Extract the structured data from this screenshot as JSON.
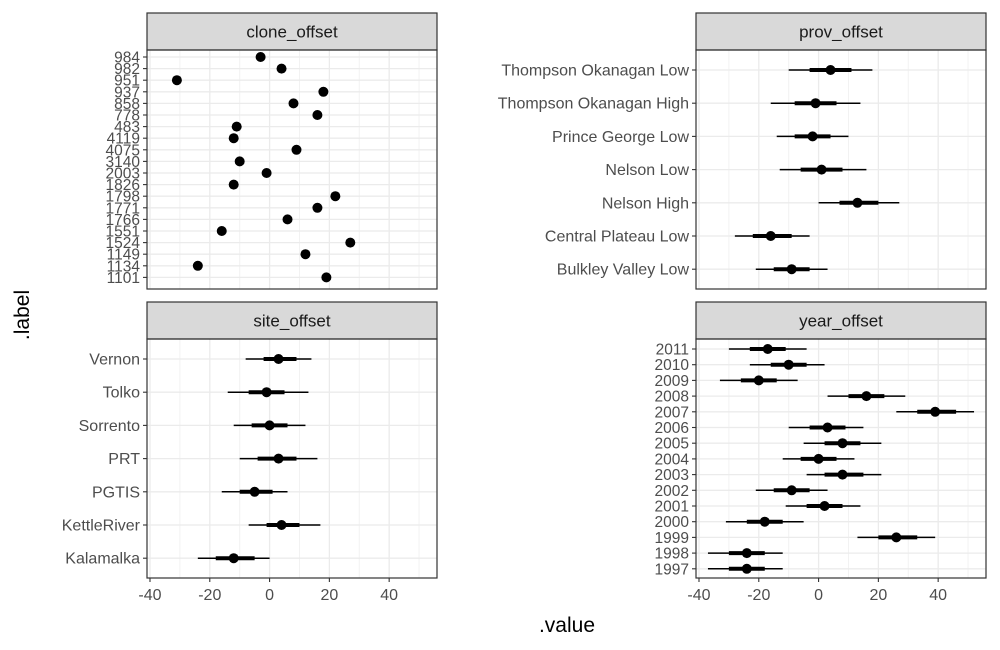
{
  "chart_data": {
    "type": "scatter",
    "xlabel": ".value",
    "ylabel": ".label",
    "x_ticks": [
      -40,
      -20,
      0,
      20,
      40
    ],
    "xlim": [
      -41,
      56
    ],
    "grid": true,
    "panels": [
      {
        "name": "clone_offset",
        "labels": [
          "984",
          "982",
          "951",
          "937",
          "858",
          "778",
          "483",
          "4119",
          "4075",
          "3140",
          "2003",
          "1826",
          "1798",
          "1771",
          "1766",
          "1551",
          "1524",
          "1149",
          "1134",
          "1101"
        ],
        "points": [
          {
            "label": "984",
            "value": -3
          },
          {
            "label": "982",
            "value": 4
          },
          {
            "label": "951",
            "value": -31
          },
          {
            "label": "937",
            "value": 18
          },
          {
            "label": "858",
            "value": 8
          },
          {
            "label": "778",
            "value": 16
          },
          {
            "label": "483",
            "value": -11
          },
          {
            "label": "4119",
            "value": -12
          },
          {
            "label": "4075",
            "value": 9
          },
          {
            "label": "3140",
            "value": -10
          },
          {
            "label": "2003",
            "value": -1
          },
          {
            "label": "1826",
            "value": -12
          },
          {
            "label": "1798",
            "value": 22
          },
          {
            "label": "1771",
            "value": 16
          },
          {
            "label": "1766",
            "value": 6
          },
          {
            "label": "1551",
            "value": -16
          },
          {
            "label": "1524",
            "value": 27
          },
          {
            "label": "1149",
            "value": 12
          },
          {
            "label": "1134",
            "value": -24
          },
          {
            "label": "1101",
            "value": 19
          }
        ]
      },
      {
        "name": "prov_offset",
        "labels": [
          "Thompson Okanagan Low",
          "Thompson Okanagan High",
          "Prince George Low",
          "Nelson Low",
          "Nelson High",
          "Central Plateau Low",
          "Bulkley Valley Low"
        ],
        "points": [
          {
            "label": "Thompson Okanagan Low",
            "value": 4,
            "inner": [
              -3,
              11
            ],
            "outer": [
              -10,
              18
            ]
          },
          {
            "label": "Thompson Okanagan High",
            "value": -1,
            "inner": [
              -8,
              6
            ],
            "outer": [
              -16,
              14
            ]
          },
          {
            "label": "Prince George Low",
            "value": -2,
            "inner": [
              -8,
              4
            ],
            "outer": [
              -14,
              10
            ]
          },
          {
            "label": "Nelson Low",
            "value": 1,
            "inner": [
              -6,
              8
            ],
            "outer": [
              -13,
              16
            ]
          },
          {
            "label": "Nelson High",
            "value": 13,
            "inner": [
              7,
              20
            ],
            "outer": [
              0,
              27
            ]
          },
          {
            "label": "Central Plateau Low",
            "value": -16,
            "inner": [
              -22,
              -9
            ],
            "outer": [
              -28,
              -3
            ]
          },
          {
            "label": "Bulkley Valley Low",
            "value": -9,
            "inner": [
              -15,
              -3
            ],
            "outer": [
              -21,
              3
            ]
          }
        ]
      },
      {
        "name": "site_offset",
        "labels": [
          "Vernon",
          "Tolko",
          "Sorrento",
          "PRT",
          "PGTIS",
          "KettleRiver",
          "Kalamalka"
        ],
        "points": [
          {
            "label": "Vernon",
            "value": 3,
            "inner": [
              -2,
              9
            ],
            "outer": [
              -8,
              14
            ]
          },
          {
            "label": "Tolko",
            "value": -1,
            "inner": [
              -7,
              5
            ],
            "outer": [
              -14,
              13
            ]
          },
          {
            "label": "Sorrento",
            "value": 0,
            "inner": [
              -6,
              6
            ],
            "outer": [
              -12,
              12
            ]
          },
          {
            "label": "PRT",
            "value": 3,
            "inner": [
              -4,
              9
            ],
            "outer": [
              -10,
              16
            ]
          },
          {
            "label": "PGTIS",
            "value": -5,
            "inner": [
              -10,
              1
            ],
            "outer": [
              -16,
              6
            ]
          },
          {
            "label": "KettleRiver",
            "value": 4,
            "inner": [
              -1,
              10
            ],
            "outer": [
              -7,
              17
            ]
          },
          {
            "label": "Kalamalka",
            "value": -12,
            "inner": [
              -18,
              -5
            ],
            "outer": [
              -24,
              0
            ]
          }
        ]
      },
      {
        "name": "year_offset",
        "labels": [
          "2011",
          "2010",
          "2009",
          "2008",
          "2007",
          "2006",
          "2005",
          "2004",
          "2003",
          "2002",
          "2001",
          "2000",
          "1999",
          "1998",
          "1997"
        ],
        "points": [
          {
            "label": "2011",
            "value": -17,
            "inner": [
              -23,
              -11
            ],
            "outer": [
              -30,
              -4
            ]
          },
          {
            "label": "2010",
            "value": -10,
            "inner": [
              -16,
              -4
            ],
            "outer": [
              -23,
              2
            ]
          },
          {
            "label": "2009",
            "value": -20,
            "inner": [
              -26,
              -14
            ],
            "outer": [
              -33,
              -7
            ]
          },
          {
            "label": "2008",
            "value": 16,
            "inner": [
              10,
              22
            ],
            "outer": [
              3,
              29
            ]
          },
          {
            "label": "2007",
            "value": 39,
            "inner": [
              33,
              46
            ],
            "outer": [
              26,
              52
            ]
          },
          {
            "label": "2006",
            "value": 3,
            "inner": [
              -3,
              9
            ],
            "outer": [
              -10,
              15
            ]
          },
          {
            "label": "2005",
            "value": 8,
            "inner": [
              2,
              14
            ],
            "outer": [
              -5,
              21
            ]
          },
          {
            "label": "2004",
            "value": 0,
            "inner": [
              -6,
              6
            ],
            "outer": [
              -12,
              12
            ]
          },
          {
            "label": "2003",
            "value": 8,
            "inner": [
              2,
              15
            ],
            "outer": [
              -4,
              21
            ]
          },
          {
            "label": "2002",
            "value": -9,
            "inner": [
              -15,
              -3
            ],
            "outer": [
              -21,
              3
            ]
          },
          {
            "label": "2001",
            "value": 2,
            "inner": [
              -4,
              8
            ],
            "outer": [
              -11,
              14
            ]
          },
          {
            "label": "2000",
            "value": -18,
            "inner": [
              -24,
              -12
            ],
            "outer": [
              -31,
              -5
            ]
          },
          {
            "label": "1999",
            "value": 26,
            "inner": [
              20,
              33
            ],
            "outer": [
              13,
              39
            ]
          },
          {
            "label": "1998",
            "value": -24,
            "inner": [
              -30,
              -18
            ],
            "outer": [
              -37,
              -12
            ]
          },
          {
            "label": "1997",
            "value": -24,
            "inner": [
              -30,
              -18
            ],
            "outer": [
              -37,
              -12
            ]
          }
        ]
      }
    ]
  }
}
